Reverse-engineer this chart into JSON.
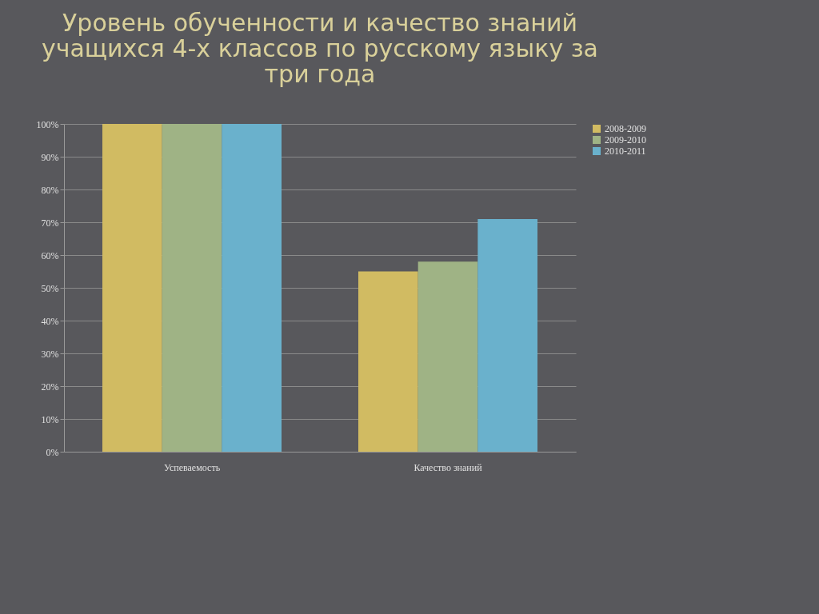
{
  "chart_data": {
    "type": "bar",
    "title": "Уровень обученности и качество знаний учащихся 4-х классов по русскому языку за три года",
    "categories": [
      "Успеваемость",
      "Качество знаний"
    ],
    "series": [
      {
        "name": "2008-2009",
        "color": "#d1bb62",
        "values": [
          100,
          55
        ]
      },
      {
        "name": "2009-2010",
        "color": "#9fb385",
        "values": [
          100,
          58
        ]
      },
      {
        "name": "2010-2011",
        "color": "#6ab1cc",
        "values": [
          100,
          71
        ]
      }
    ],
    "ylim": [
      0,
      100
    ],
    "yticks": [
      {
        "value": 0,
        "label": "0%"
      },
      {
        "value": 10,
        "label": "10%"
      },
      {
        "value": 20,
        "label": "20%"
      },
      {
        "value": 30,
        "label": "30%"
      },
      {
        "value": 40,
        "label": "40%"
      },
      {
        "value": 50,
        "label": "50%"
      },
      {
        "value": 60,
        "label": "60%"
      },
      {
        "value": 70,
        "label": "70%"
      },
      {
        "value": 80,
        "label": "80%"
      },
      {
        "value": 90,
        "label": "90%"
      },
      {
        "value": 100,
        "label": "100%"
      }
    ],
    "grid": "y",
    "legend": "right"
  }
}
